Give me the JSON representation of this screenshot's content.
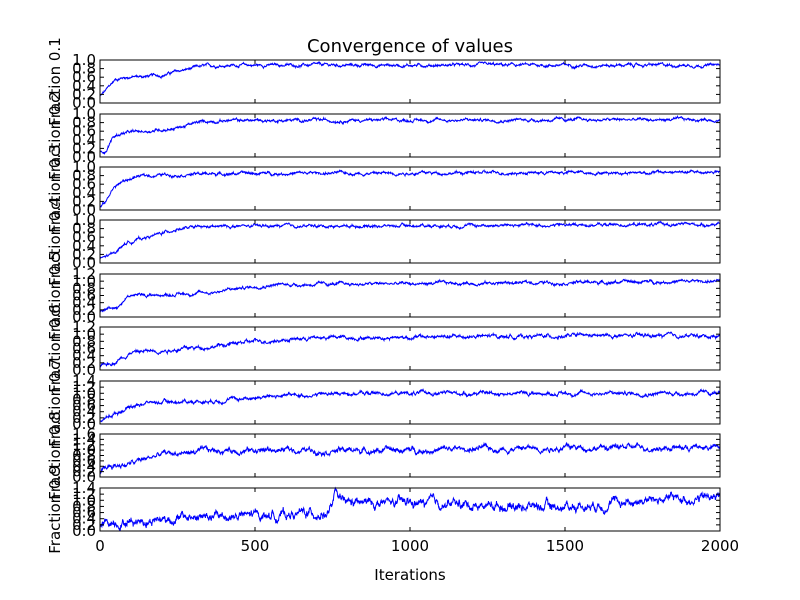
{
  "chart_data": {
    "type": "line",
    "title": "Convergence of values",
    "xlabel": "Iterations",
    "xlim": [
      0,
      2000
    ],
    "x_ticks": [
      0,
      500,
      1000,
      1500,
      2000
    ],
    "n_points": 2000,
    "line_color": "#0000ff",
    "grid": false,
    "legend": "none",
    "panels": [
      {
        "ylabel": "Fraction 0.1",
        "ylim": [
          0.0,
          1.0
        ],
        "y_ticks": [
          "0.0",
          "0.2",
          "0.4",
          "0.6",
          "0.8",
          "1.0"
        ],
        "keypoints": [
          [
            0,
            0.15
          ],
          [
            20,
            0.3
          ],
          [
            50,
            0.55
          ],
          [
            80,
            0.6
          ],
          [
            150,
            0.62
          ],
          [
            200,
            0.65
          ],
          [
            260,
            0.75
          ],
          [
            330,
            0.85
          ],
          [
            400,
            0.88
          ],
          [
            2000,
            0.88
          ]
        ],
        "noise": 0.02
      },
      {
        "ylabel": "Fraction 0.2",
        "ylim": [
          0.0,
          1.0
        ],
        "y_ticks": [
          "0.0",
          "0.2",
          "0.4",
          "0.6",
          "0.8",
          "1.0"
        ],
        "keypoints": [
          [
            0,
            0.1
          ],
          [
            20,
            0.15
          ],
          [
            40,
            0.45
          ],
          [
            70,
            0.55
          ],
          [
            150,
            0.6
          ],
          [
            250,
            0.68
          ],
          [
            330,
            0.82
          ],
          [
            400,
            0.85
          ],
          [
            2000,
            0.87
          ]
        ],
        "noise": 0.02
      },
      {
        "ylabel": "Fraction 0.3",
        "ylim": [
          0.0,
          1.0
        ],
        "y_ticks": [
          "0.0",
          "0.2",
          "0.4",
          "0.6",
          "0.8",
          "1.0"
        ],
        "keypoints": [
          [
            0,
            0.05
          ],
          [
            20,
            0.2
          ],
          [
            40,
            0.5
          ],
          [
            70,
            0.65
          ],
          [
            120,
            0.78
          ],
          [
            200,
            0.82
          ],
          [
            400,
            0.85
          ],
          [
            2000,
            0.88
          ]
        ],
        "noise": 0.02
      },
      {
        "ylabel": "Fraction 0.4",
        "ylim": [
          0.0,
          1.0
        ],
        "y_ticks": [
          "0.0",
          "0.2",
          "0.4",
          "0.6",
          "0.8",
          "1.0"
        ],
        "keypoints": [
          [
            0,
            0.1
          ],
          [
            40,
            0.2
          ],
          [
            80,
            0.45
          ],
          [
            120,
            0.55
          ],
          [
            180,
            0.65
          ],
          [
            250,
            0.8
          ],
          [
            400,
            0.85
          ],
          [
            2000,
            0.9
          ]
        ],
        "noise": 0.02
      },
      {
        "ylabel": "Fraction 0.5",
        "ylim": [
          0.0,
          1.2
        ],
        "y_ticks": [
          "0.0",
          "0.2",
          "0.4",
          "0.6",
          "0.8",
          "1.0",
          "1.2"
        ],
        "keypoints": [
          [
            0,
            0.15
          ],
          [
            30,
            0.25
          ],
          [
            60,
            0.3
          ],
          [
            90,
            0.6
          ],
          [
            200,
            0.62
          ],
          [
            350,
            0.68
          ],
          [
            450,
            0.8
          ],
          [
            550,
            0.9
          ],
          [
            2000,
            1.0
          ]
        ],
        "noise": 0.025
      },
      {
        "ylabel": "Fraction 0.6",
        "ylim": [
          0.0,
          1.2
        ],
        "y_ticks": [
          "0.0",
          "0.2",
          "0.4",
          "0.6",
          "0.8",
          "1.0",
          "1.2"
        ],
        "keypoints": [
          [
            0,
            0.1
          ],
          [
            40,
            0.2
          ],
          [
            100,
            0.5
          ],
          [
            200,
            0.55
          ],
          [
            350,
            0.65
          ],
          [
            500,
            0.8
          ],
          [
            700,
            0.9
          ],
          [
            1500,
            0.95
          ],
          [
            2000,
            0.95
          ]
        ],
        "noise": 0.03
      },
      {
        "ylabel": "Fraction 0.7",
        "ylim": [
          0.0,
          1.4
        ],
        "y_ticks": [
          "0.0",
          "0.2",
          "0.4",
          "0.6",
          "0.8",
          "1.0",
          "1.2",
          "1.4"
        ],
        "keypoints": [
          [
            0,
            0.1
          ],
          [
            30,
            0.25
          ],
          [
            90,
            0.55
          ],
          [
            150,
            0.7
          ],
          [
            350,
            0.75
          ],
          [
            550,
            0.9
          ],
          [
            800,
            1.0
          ],
          [
            2000,
            1.0
          ]
        ],
        "noise": 0.035
      },
      {
        "ylabel": "Fraction 0.8",
        "ylim": [
          0.0,
          1.6
        ],
        "y_ticks": [
          "0.0",
          "0.2",
          "0.4",
          "0.6",
          "0.8",
          "1.0",
          "1.2",
          "1.4",
          "1.6"
        ],
        "keypoints": [
          [
            0,
            0.1
          ],
          [
            30,
            0.4
          ],
          [
            100,
            0.5
          ],
          [
            200,
            0.85
          ],
          [
            400,
            1.0
          ],
          [
            1000,
            1.0
          ],
          [
            1500,
            1.1
          ],
          [
            2000,
            1.1
          ]
        ],
        "noise": 0.06
      },
      {
        "ylabel": "Fraction 0.9",
        "ylim": [
          0.0,
          1.4
        ],
        "y_ticks": [
          "0.0",
          "0.2",
          "0.4",
          "0.6",
          "0.8",
          "1.0",
          "1.2",
          "1.4"
        ],
        "keypoints": [
          [
            0,
            0.1
          ],
          [
            30,
            0.3
          ],
          [
            200,
            0.4
          ],
          [
            500,
            0.5
          ],
          [
            740,
            0.6
          ],
          [
            760,
            1.2
          ],
          [
            780,
            0.9
          ],
          [
            1000,
            0.9
          ],
          [
            1500,
            0.8
          ],
          [
            1750,
            1.0
          ],
          [
            2000,
            1.1
          ]
        ],
        "noise": 0.09
      }
    ]
  }
}
